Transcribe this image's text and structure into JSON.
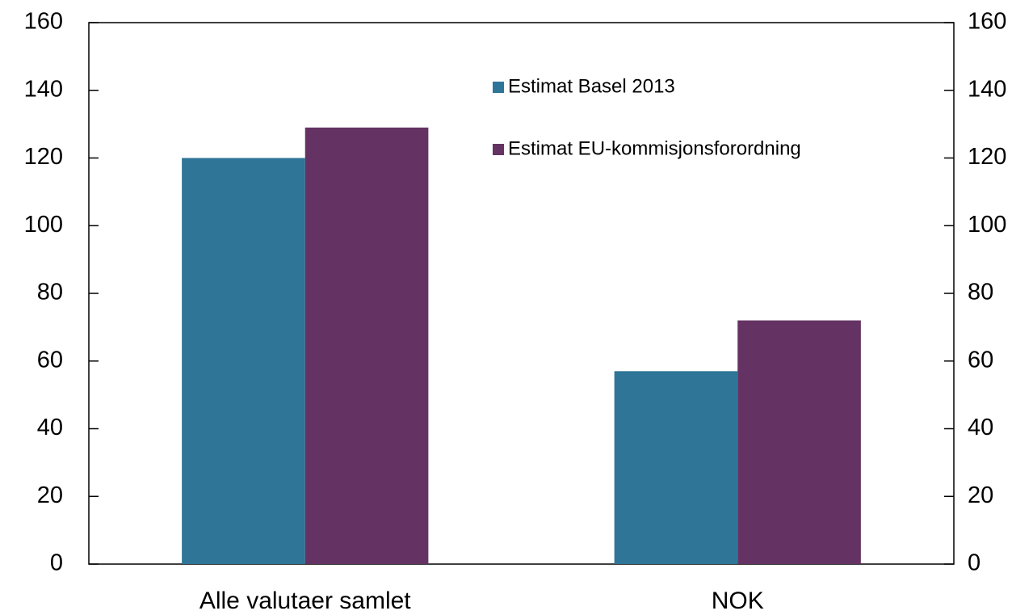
{
  "chart_data": {
    "type": "bar",
    "categories": [
      "Alle valutaer samlet",
      "NOK"
    ],
    "series": [
      {
        "name": "Estimat Basel 2013",
        "color": "#2e7598",
        "values": [
          120,
          57
        ]
      },
      {
        "name": "Estimat EU-kommisjonsforordning",
        "color": "#643363",
        "values": [
          129,
          72
        ]
      }
    ],
    "ylim": [
      0,
      160
    ],
    "yticks": [
      0,
      20,
      40,
      60,
      80,
      100,
      120,
      140,
      160
    ],
    "y2lim": [
      0,
      160
    ],
    "y2ticks": [
      0,
      20,
      40,
      60,
      80,
      100,
      120,
      140,
      160
    ],
    "grid": false
  }
}
